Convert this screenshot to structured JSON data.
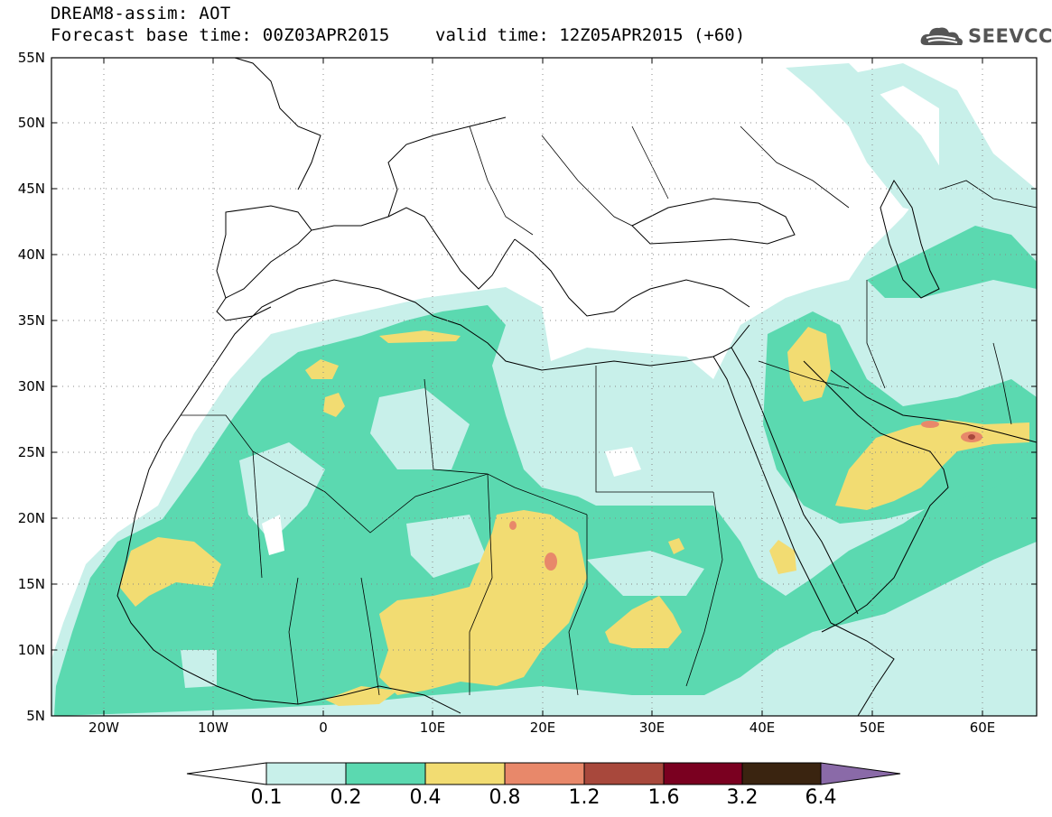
{
  "header": {
    "title_line1": "DREAM8-assim: AOT",
    "title_line2": "Forecast base time: 00Z03APR2015",
    "valid_time": "valid time: 12Z05APR2015 (+60)",
    "logo_text": "SEEVCCC"
  },
  "map": {
    "lat_labels": [
      "55N",
      "50N",
      "45N",
      "40N",
      "35N",
      "30N",
      "25N",
      "20N",
      "15N",
      "10N",
      "5N"
    ],
    "lon_labels": [
      "20W",
      "10W",
      "0",
      "10E",
      "20E",
      "30E",
      "40E",
      "50E",
      "60E"
    ],
    "extent": {
      "lon_min": -25,
      "lon_max": 65,
      "lat_min": 5,
      "lat_max": 55
    },
    "quantity": "AOT",
    "gridlines": "dotted"
  },
  "legend": {
    "labels": [
      "0.1",
      "0.2",
      "0.4",
      "0.8",
      "1.2",
      "1.6",
      "3.2",
      "6.4"
    ],
    "colors": [
      "#ffffff",
      "#c8f0ea",
      "#5bd9b0",
      "#f2dc72",
      "#e8886a",
      "#a8483c",
      "#7a0020",
      "#3a2410",
      "#8a6aa8"
    ]
  }
}
